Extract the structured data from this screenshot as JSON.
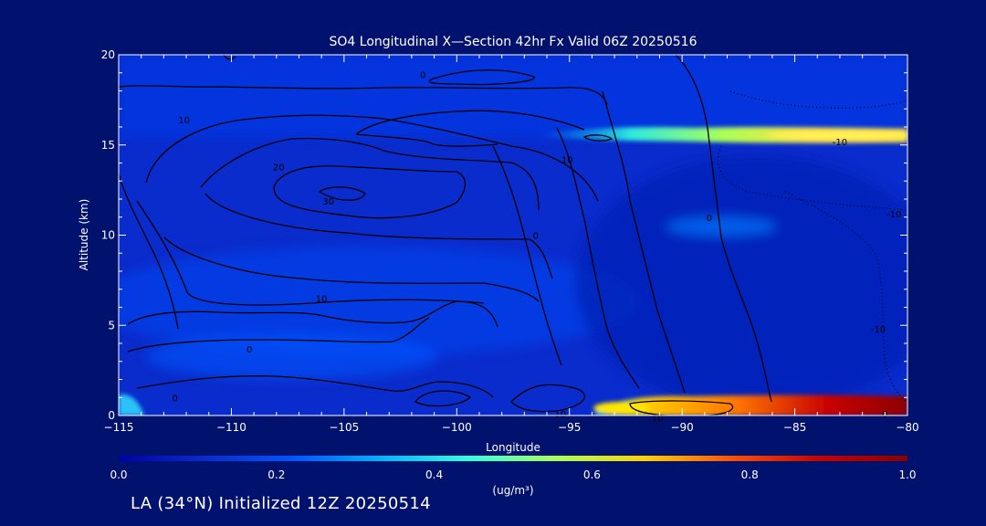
{
  "footer": "LA (34°N) Initialized 12Z 20250514",
  "colors": {
    "background": "#00126e",
    "axis": "#ffffff",
    "contour": "#000000",
    "colormap": [
      "#0000a8",
      "#0a2ccc",
      "#0055ff",
      "#00b4ff",
      "#33ffdd",
      "#aaff55",
      "#ffd200",
      "#ff5000",
      "#c80000",
      "#8c0000"
    ]
  },
  "chart_data": {
    "type": "heatmap",
    "title": "SO4 Longitudinal X—Section 42hr  Fx Valid 06Z 20250516",
    "xlabel": "Longitude",
    "ylabel": "Altitude (km)",
    "xlim": [
      -115,
      -80
    ],
    "ylim": [
      0,
      20
    ],
    "xticks": [
      -115,
      -110,
      -105,
      -100,
      -95,
      -90,
      -85,
      -80
    ],
    "yticks": [
      0,
      5,
      10,
      15,
      20
    ],
    "colorbar": {
      "label": "(ug/m³)",
      "range": [
        0.0,
        1.0
      ],
      "ticks": [
        "0.0",
        "0.2",
        "0.4",
        "0.6",
        "0.8",
        "1.0"
      ]
    },
    "features": [
      {
        "name": "upper-so4-band",
        "lon": [
          -96,
          -80
        ],
        "alt": [
          15.0,
          15.8
        ],
        "value": 0.55
      },
      {
        "name": "surface-so4-plume",
        "lon": [
          -93,
          -80
        ],
        "alt": [
          0,
          0.8
        ],
        "value": 0.95
      },
      {
        "name": "western-surface-patch",
        "lon": [
          -115,
          -114
        ],
        "alt": [
          0,
          1.0
        ],
        "value": 0.3
      }
    ],
    "contour_labels": [
      {
        "text": "0",
        "lon": -101.5,
        "alt": 18.9
      },
      {
        "text": "10",
        "lon": -112.1,
        "alt": 16.4
      },
      {
        "text": "20",
        "lon": -107.9,
        "alt": 13.8
      },
      {
        "text": "30",
        "lon": -105.7,
        "alt": 11.9
      },
      {
        "text": "10",
        "lon": -95.1,
        "alt": 14.2
      },
      {
        "text": "0",
        "lon": -96.5,
        "alt": 10.0
      },
      {
        "text": "0",
        "lon": -88.8,
        "alt": 11.0
      },
      {
        "text": "10",
        "lon": -106.0,
        "alt": 6.5
      },
      {
        "text": "0",
        "lon": -109.2,
        "alt": 3.7
      },
      {
        "text": "0",
        "lon": -112.5,
        "alt": 1.0
      },
      {
        "text": "10",
        "lon": -95.4,
        "alt": 0.1
      },
      {
        "text": "10",
        "lon": -91.1,
        "alt": -0.1
      },
      {
        "text": "0",
        "lon": -81.0,
        "alt": 0.1
      },
      {
        "text": "-10",
        "lon": -83.0,
        "alt": 15.2
      },
      {
        "text": "-10",
        "lon": -80.6,
        "alt": 11.2
      },
      {
        "text": "-10",
        "lon": -81.3,
        "alt": 4.8
      }
    ]
  }
}
